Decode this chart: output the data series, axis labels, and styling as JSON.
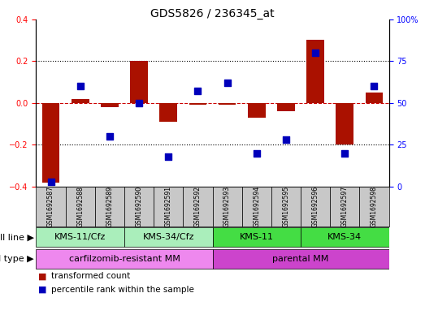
{
  "title": "GDS5826 / 236345_at",
  "samples": [
    "GSM1692587",
    "GSM1692588",
    "GSM1692589",
    "GSM1692590",
    "GSM1692591",
    "GSM1692592",
    "GSM1692593",
    "GSM1692594",
    "GSM1692595",
    "GSM1692596",
    "GSM1692597",
    "GSM1692598"
  ],
  "transformed_count": [
    -0.38,
    0.02,
    -0.02,
    0.2,
    -0.09,
    -0.01,
    -0.01,
    -0.07,
    -0.04,
    0.3,
    -0.2,
    0.05
  ],
  "percentile_rank": [
    3,
    60,
    30,
    50,
    18,
    57,
    62,
    20,
    28,
    80,
    20,
    60
  ],
  "cell_line_groups": [
    {
      "label": "KMS-11/Cfz",
      "start": 0,
      "end": 3,
      "color": "#AAEEBB"
    },
    {
      "label": "KMS-34/Cfz",
      "start": 3,
      "end": 6,
      "color": "#AAEEBB"
    },
    {
      "label": "KMS-11",
      "start": 6,
      "end": 9,
      "color": "#44DD44"
    },
    {
      "label": "KMS-34",
      "start": 9,
      "end": 12,
      "color": "#44DD44"
    }
  ],
  "cell_type_groups": [
    {
      "label": "carfilzomib-resistant MM",
      "start": 0,
      "end": 6,
      "color": "#EE88EE"
    },
    {
      "label": "parental MM",
      "start": 6,
      "end": 12,
      "color": "#CC44CC"
    }
  ],
  "bar_color": "#AA1100",
  "dot_color": "#0000BB",
  "left_ylim": [
    -0.4,
    0.4
  ],
  "right_ylim": [
    0,
    100
  ],
  "left_yticks": [
    -0.4,
    -0.2,
    0.0,
    0.2,
    0.4
  ],
  "right_yticks": [
    0,
    25,
    50,
    75,
    100
  ],
  "right_yticklabels": [
    "0",
    "25",
    "50",
    "75",
    "100%"
  ],
  "bar_width": 0.6,
  "dot_size": 40,
  "legend_items": [
    {
      "color": "#AA1100",
      "label": "transformed count"
    },
    {
      "color": "#0000BB",
      "label": "percentile rank within the sample"
    }
  ],
  "cell_line_row_label": "cell line",
  "cell_type_row_label": "cell type",
  "background_color": "#FFFFFF",
  "title_fontsize": 10,
  "tick_fontsize": 7,
  "annotation_fontsize": 8,
  "sample_fontsize": 5.5,
  "legend_fontsize": 7.5
}
